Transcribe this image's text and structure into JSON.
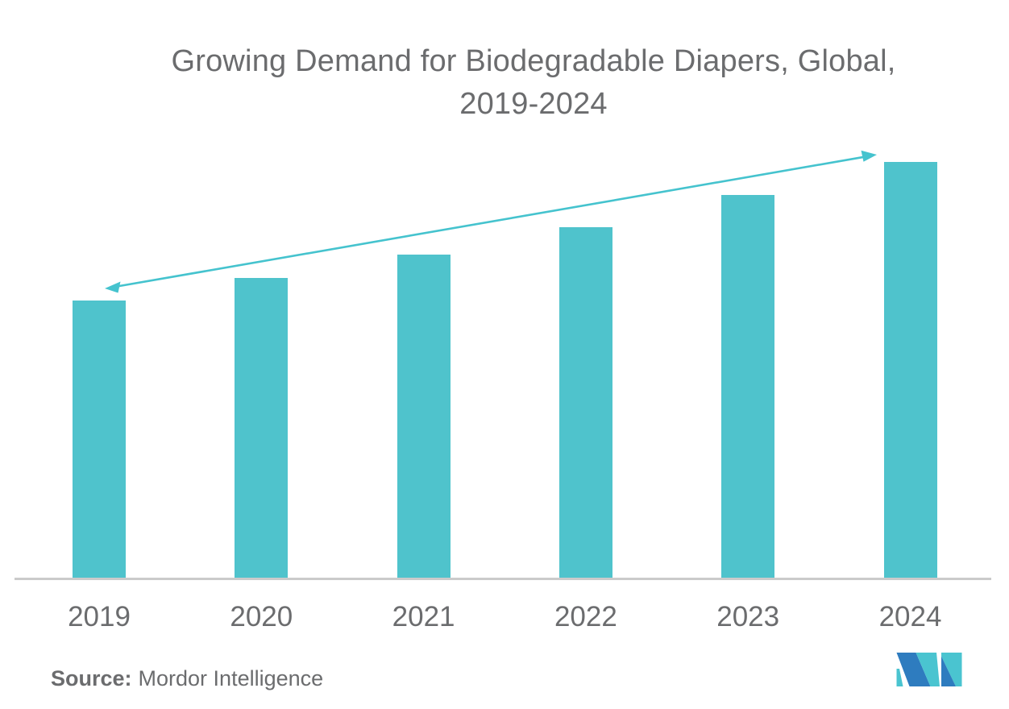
{
  "title": {
    "line1": "Growing Demand for Biodegradable Diapers, Global,",
    "line2": "2019-2024"
  },
  "source": {
    "label": "Source:",
    "name": "Mordor Intelligence"
  },
  "logo": {
    "name": "mordor-intelligence-logo"
  },
  "colors": {
    "bar": "#4FC3CC",
    "arrow": "#45C3CE",
    "axis": "#CBCBCB",
    "text_primary": "#6B6C6E",
    "logo_blue": "#2E7CBF",
    "logo_teal": "#4AC4D0"
  },
  "chart_data": {
    "type": "bar",
    "title": "Growing Demand for Biodegradable Diapers, Global, 2019-2024",
    "categories": [
      "2019",
      "2020",
      "2021",
      "2022",
      "2023",
      "2024"
    ],
    "values": [
      100,
      108,
      116.5,
      126.4,
      138,
      150
    ],
    "values_note": "Relative demand index (2019 = 100); chart displays no y-axis or value labels, heights estimated from bar proportions",
    "xlabel": "",
    "ylabel": "",
    "legend": false,
    "grid": false,
    "y_axis_shown": false,
    "bar_color": "#4FC3CC",
    "annotations": [
      {
        "type": "double-headed-arrow",
        "from_category": "2019",
        "to_category": "2024",
        "description": "Upward trend arrow spanning from above the 2019 bar to the top of the 2024 bar"
      }
    ]
  }
}
